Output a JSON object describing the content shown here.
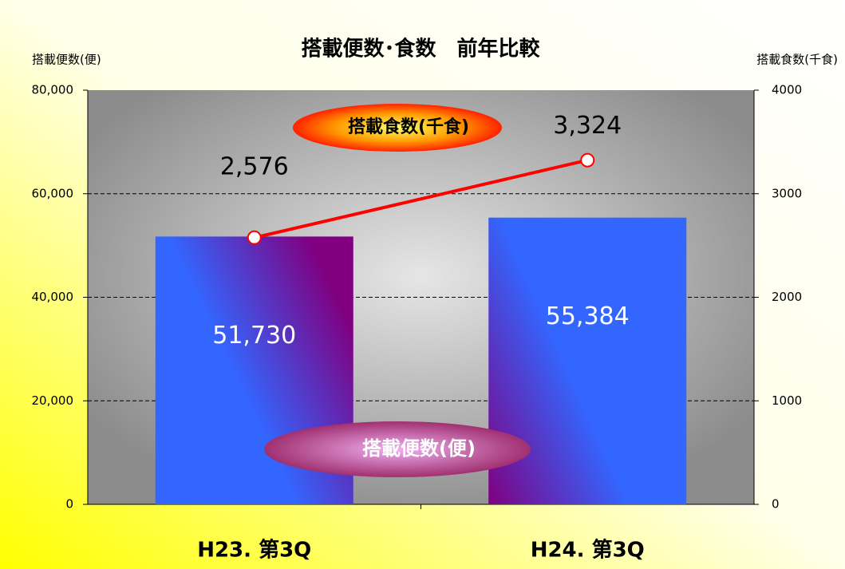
{
  "chart_data": {
    "type": "bar",
    "title": "搭載便数･食数　前年比較",
    "y_label": "搭載便数(便)",
    "y2_label": "搭載食数(千食)",
    "categories": [
      "H23. 第3Q",
      "H24. 第3Q"
    ],
    "series": [
      {
        "name": "搭載便数(便)",
        "type": "bar",
        "color": "#3366ff",
        "values": [
          51730,
          55384
        ],
        "value_labels": [
          "51,730",
          "55,384"
        ]
      },
      {
        "name": "搭載食数(千食)",
        "type": "line",
        "axis": "y2",
        "color": "#ff0000",
        "values": [
          2576,
          3324
        ],
        "value_labels": [
          "2,576",
          "3,324"
        ]
      }
    ],
    "ylim": [
      0,
      80000
    ],
    "yticks": [
      0,
      {
        "value": 20000,
        "label": "20,000"
      },
      {
        "value": 40000,
        "label": "40,000"
      },
      {
        "value": 60000,
        "label": "60,000"
      },
      {
        "value": 80000,
        "label": "80,000"
      }
    ],
    "y2lim": [
      0,
      4000
    ],
    "y2ticks": [
      0,
      1000,
      2000,
      3000,
      4000
    ],
    "grid": true
  }
}
